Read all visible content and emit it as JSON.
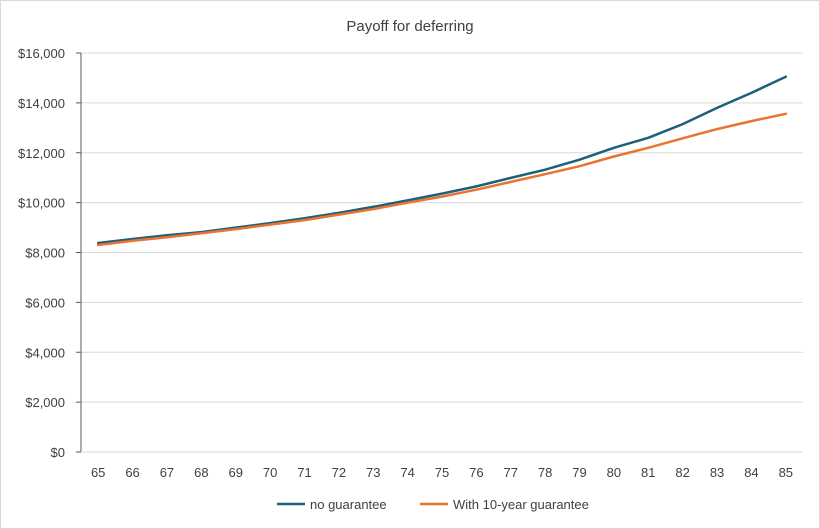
{
  "chart_data": {
    "type": "line",
    "title": "Payoff for deferring",
    "xlabel": "",
    "ylabel": "",
    "categories": [
      "65",
      "66",
      "67",
      "68",
      "69",
      "70",
      "71",
      "72",
      "73",
      "74",
      "75",
      "76",
      "77",
      "78",
      "79",
      "80",
      "81",
      "82",
      "83",
      "84",
      "85"
    ],
    "yticks": [
      "$0",
      "$2,000",
      "$4,000",
      "$6,000",
      "$8,000",
      "$10,000",
      "$12,000",
      "$14,000",
      "$16,000"
    ],
    "ylim": [
      0,
      16000
    ],
    "grid": true,
    "legend": "bottom",
    "series": [
      {
        "name": "no guarantee",
        "color": "#1f5f7a",
        "values": [
          8380,
          8540,
          8690,
          8820,
          9000,
          9180,
          9370,
          9590,
          9830,
          10090,
          10360,
          10650,
          10990,
          11320,
          11720,
          12200,
          12600,
          13150,
          13800,
          14400,
          15050
        ]
      },
      {
        "name": "With 10-year guarantee",
        "color": "#e8742f",
        "values": [
          8300,
          8470,
          8610,
          8770,
          8940,
          9120,
          9300,
          9520,
          9740,
          10000,
          10240,
          10520,
          10830,
          11140,
          11460,
          11850,
          12200,
          12580,
          12950,
          13270,
          13560
        ]
      }
    ]
  }
}
